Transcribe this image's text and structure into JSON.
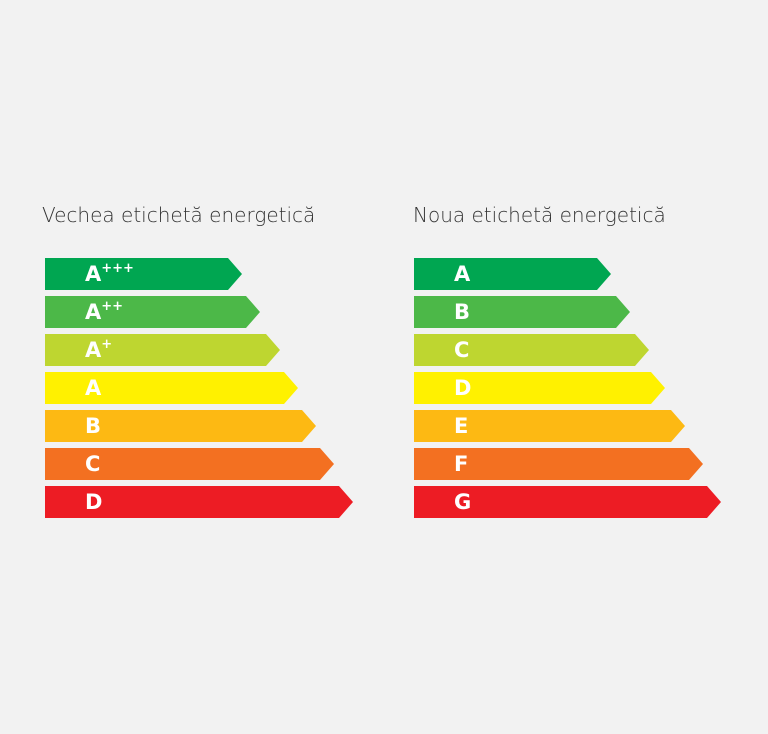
{
  "panels": [
    {
      "title": "Vechea etichetă energetică",
      "classes": [
        {
          "base": "A",
          "sup": "+++"
        },
        {
          "base": "A",
          "sup": "++"
        },
        {
          "base": "A",
          "sup": "+"
        },
        {
          "base": "A"
        },
        {
          "base": "B"
        },
        {
          "base": "C"
        },
        {
          "base": "D"
        }
      ]
    },
    {
      "title": "Noua etichetă energetică",
      "classes": [
        {
          "base": "A"
        },
        {
          "base": "B"
        },
        {
          "base": "C"
        },
        {
          "base": "D"
        },
        {
          "base": "E"
        },
        {
          "base": "F"
        },
        {
          "base": "G"
        }
      ]
    }
  ]
}
